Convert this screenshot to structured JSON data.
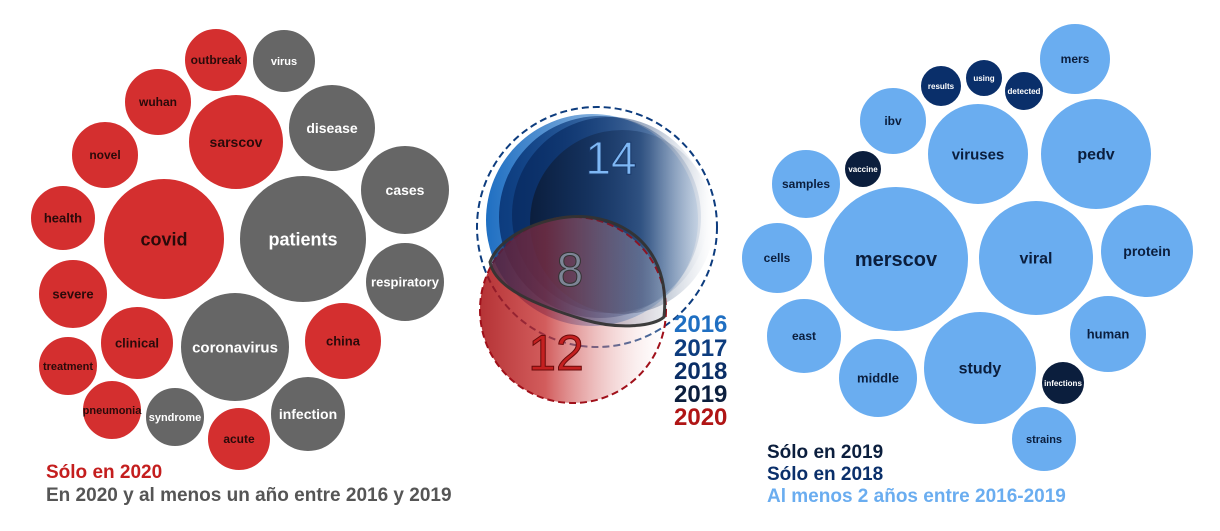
{
  "colors": {
    "only_2020": "#d42f2f",
    "common_2020": "#666666",
    "only_2019": "#0b1e3d",
    "only_2018": "#0a2f6a",
    "multi_years": "#6aadf0",
    "year_2016": "#1f6fc2",
    "year_2017": "#0d3c7e",
    "year_2018": "#0a2e66",
    "year_2019": "#0b1e3d",
    "year_2020": "#b01515"
  },
  "left_cluster": {
    "words": [
      {
        "label": "covid",
        "group": "only_2020"
      },
      {
        "label": "patients",
        "group": "common_2020"
      },
      {
        "label": "coronavirus",
        "group": "common_2020"
      },
      {
        "label": "sarscov",
        "group": "only_2020"
      },
      {
        "label": "disease",
        "group": "common_2020"
      },
      {
        "label": "cases",
        "group": "common_2020"
      },
      {
        "label": "respiratory",
        "group": "common_2020"
      },
      {
        "label": "china",
        "group": "only_2020"
      },
      {
        "label": "infection",
        "group": "common_2020"
      },
      {
        "label": "acute",
        "group": "only_2020"
      },
      {
        "label": "syndrome",
        "group": "common_2020"
      },
      {
        "label": "pneumonia",
        "group": "only_2020"
      },
      {
        "label": "treatment",
        "group": "only_2020"
      },
      {
        "label": "clinical",
        "group": "only_2020"
      },
      {
        "label": "severe",
        "group": "only_2020"
      },
      {
        "label": "health",
        "group": "only_2020"
      },
      {
        "label": "novel",
        "group": "only_2020"
      },
      {
        "label": "wuhan",
        "group": "only_2020"
      },
      {
        "label": "outbreak",
        "group": "only_2020"
      },
      {
        "label": "virus",
        "group": "common_2020"
      }
    ]
  },
  "right_cluster": {
    "words": [
      {
        "label": "merscov",
        "group": "multi_years"
      },
      {
        "label": "viral",
        "group": "multi_years"
      },
      {
        "label": "study",
        "group": "multi_years"
      },
      {
        "label": "viruses",
        "group": "multi_years"
      },
      {
        "label": "pedv",
        "group": "multi_years"
      },
      {
        "label": "protein",
        "group": "multi_years"
      },
      {
        "label": "human",
        "group": "multi_years"
      },
      {
        "label": "strains",
        "group": "multi_years"
      },
      {
        "label": "infections",
        "group": "only_2019"
      },
      {
        "label": "middle",
        "group": "multi_years"
      },
      {
        "label": "east",
        "group": "multi_years"
      },
      {
        "label": "cells",
        "group": "multi_years"
      },
      {
        "label": "samples",
        "group": "multi_years"
      },
      {
        "label": "vaccine",
        "group": "only_2019"
      },
      {
        "label": "ibv",
        "group": "multi_years"
      },
      {
        "label": "results",
        "group": "only_2018"
      },
      {
        "label": "using",
        "group": "only_2018"
      },
      {
        "label": "detected",
        "group": "only_2018"
      },
      {
        "label": "mers",
        "group": "multi_years"
      }
    ]
  },
  "venn": {
    "only_earlier": "14",
    "both": "8",
    "only_2020": "12"
  },
  "year_legend": [
    "2016",
    "2017",
    "2018",
    "2019",
    "2020"
  ],
  "left_legend": {
    "line1": "Sólo en 2020",
    "line2": "En 2020 y al menos un año entre 2016 y 2019"
  },
  "right_legend": {
    "line1": "Sólo en 2019",
    "line2": "Sólo en 2018",
    "line3": "Al menos 2 años entre 2016-2019"
  }
}
